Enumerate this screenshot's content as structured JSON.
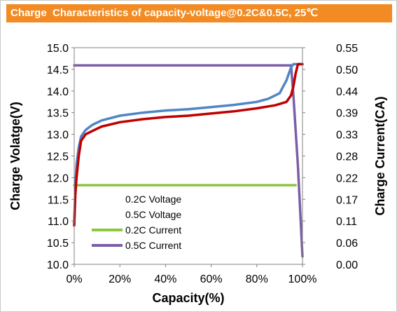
{
  "chart_data": {
    "type": "line",
    "title": "Charge  Characteristics of capacity-voltage@0.2C&0.5C, 25℃",
    "xlabel": "Capacity(%)",
    "ylabel": "Charge Volatge(V)",
    "y2label": "Charge Current(CA)",
    "xlim": [
      0,
      100
    ],
    "ylim": [
      10.0,
      15.0
    ],
    "y2lim": [
      0.0,
      0.55
    ],
    "x_ticks": [
      "0%",
      "20%",
      "40%",
      "60%",
      "80%",
      "100%"
    ],
    "y_ticks": [
      "10.0",
      "10.5",
      "11.0",
      "11.5",
      "12.0",
      "12.5",
      "13.0",
      "13.5",
      "14.0",
      "14.5",
      "15.0"
    ],
    "y2_ticks": [
      "0.00",
      "0.06",
      "0.11",
      "0.17",
      "0.22",
      "0.28",
      "0.33",
      "0.39",
      "0.44",
      "0.50",
      "0.55"
    ],
    "legend_position": "bottom-left",
    "series": [
      {
        "name": "0.2C Voltage",
        "axis": "left",
        "color": "#c00000",
        "points": [
          [
            0,
            10.9
          ],
          [
            0.5,
            11.6
          ],
          [
            1,
            12.0
          ],
          [
            2,
            12.5
          ],
          [
            3,
            12.85
          ],
          [
            5,
            13.0
          ],
          [
            8,
            13.08
          ],
          [
            12,
            13.18
          ],
          [
            20,
            13.28
          ],
          [
            30,
            13.35
          ],
          [
            40,
            13.4
          ],
          [
            50,
            13.43
          ],
          [
            60,
            13.48
          ],
          [
            70,
            13.53
          ],
          [
            80,
            13.6
          ],
          [
            88,
            13.67
          ],
          [
            93,
            13.75
          ],
          [
            95,
            13.9
          ],
          [
            96,
            14.1
          ],
          [
            97,
            14.4
          ],
          [
            98,
            14.62
          ],
          [
            100,
            14.62
          ]
        ]
      },
      {
        "name": "0.5C Voltage",
        "axis": "left",
        "color": "#4f86c6",
        "points": [
          [
            0,
            10.9
          ],
          [
            0.5,
            11.8
          ],
          [
            1,
            12.3
          ],
          [
            2,
            12.7
          ],
          [
            3,
            12.95
          ],
          [
            5,
            13.1
          ],
          [
            8,
            13.22
          ],
          [
            12,
            13.32
          ],
          [
            20,
            13.43
          ],
          [
            30,
            13.5
          ],
          [
            40,
            13.55
          ],
          [
            50,
            13.58
          ],
          [
            60,
            13.63
          ],
          [
            70,
            13.68
          ],
          [
            80,
            13.75
          ],
          [
            85,
            13.82
          ],
          [
            90,
            13.95
          ],
          [
            93,
            14.25
          ],
          [
            95,
            14.55
          ],
          [
            96,
            14.62
          ],
          [
            100,
            14.62
          ]
        ]
      },
      {
        "name": "0.2C Current",
        "axis": "right",
        "color": "#8dc641",
        "points": [
          [
            0,
            0.201
          ],
          [
            97,
            0.201
          ]
        ]
      },
      {
        "name": "0.5C Current",
        "axis": "right",
        "color": "#7b5ea7",
        "points": [
          [
            0,
            0.505
          ],
          [
            95,
            0.505
          ],
          [
            96,
            0.43
          ],
          [
            98,
            0.25
          ],
          [
            100,
            0.02
          ]
        ]
      }
    ]
  }
}
